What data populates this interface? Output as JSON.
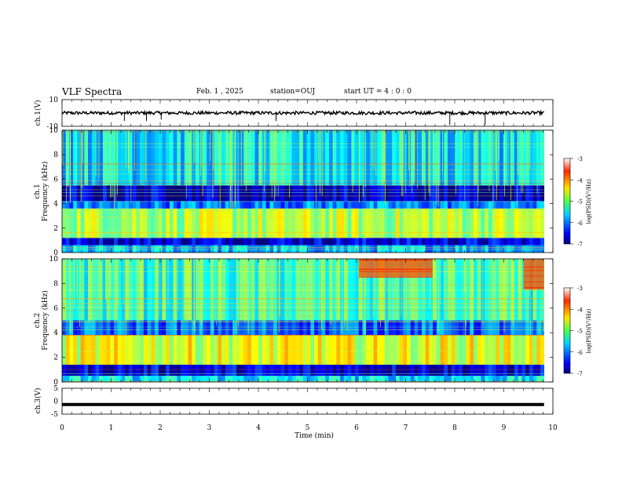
{
  "header": {
    "title": "VLF Spectra",
    "date": "Feb. 1 , 2025",
    "station": "station=OUJ",
    "start_ut": "start UT =  4 : 0  : 0"
  },
  "chart_data": [
    {
      "type": "line",
      "name": "ch1-waveform",
      "ylabel": "ch.1(V)",
      "ylim": [
        -10,
        10
      ],
      "yticks": [
        "10",
        "-10"
      ],
      "xlim": [
        0,
        10
      ],
      "baseline": 0,
      "spikes": [
        {
          "x": 1.27,
          "y": -6
        },
        {
          "x": 1.72,
          "y": -6
        },
        {
          "x": 2.02,
          "y": -5
        },
        {
          "x": 4.36,
          "y": -6
        },
        {
          "x": 7.9,
          "y": -9
        },
        {
          "x": 8.62,
          "y": -9
        }
      ]
    },
    {
      "type": "heatmap",
      "name": "ch1-spectrogram",
      "ylabel": "ch.1 Frequency (kHz)",
      "xlabel": "Time (min)",
      "xlim": [
        0,
        10
      ],
      "ylim": [
        0,
        10
      ],
      "yticks": [
        "0",
        "2",
        "4",
        "6",
        "8",
        "10"
      ],
      "colorbar": {
        "label": "log(PSD)(V²/Hz)",
        "range": [
          -7,
          -3
        ],
        "ticks": [
          "-3",
          "-4",
          "-5",
          "-6",
          "-7"
        ]
      },
      "data_extent_min": 9.82,
      "bands": [
        {
          "f": [
            0,
            0.6
          ],
          "level": -5.8
        },
        {
          "f": [
            0.6,
            1.2
          ],
          "level": -6.6
        },
        {
          "f": [
            1.2,
            3.6
          ],
          "level": -4.8
        },
        {
          "f": [
            3.6,
            4.2
          ],
          "level": -6.0
        },
        {
          "f": [
            4.2,
            5.5
          ],
          "level": -6.7
        },
        {
          "f": [
            5.5,
            10
          ],
          "level": -5.6
        }
      ]
    },
    {
      "type": "heatmap",
      "name": "ch2-spectrogram",
      "ylabel": "ch.2 Frequency (kHz)",
      "xlim": [
        0,
        10
      ],
      "ylim": [
        0,
        10
      ],
      "yticks": [
        "0",
        "2",
        "4",
        "6",
        "8",
        "10"
      ],
      "colorbar": {
        "label": "log(PSD)(V²/Hz)",
        "range": [
          -7,
          -3
        ],
        "ticks": [
          "-3",
          "-4",
          "-5",
          "-6",
          "-7"
        ]
      },
      "data_extent_min": 9.82,
      "bands": [
        {
          "f": [
            0,
            0.5
          ],
          "level": -5.6
        },
        {
          "f": [
            0.5,
            1.4
          ],
          "level": -6.6
        },
        {
          "f": [
            1.4,
            3.8
          ],
          "level": -4.6
        },
        {
          "f": [
            3.8,
            5.0
          ],
          "level": -6.1
        },
        {
          "f": [
            5.0,
            10
          ],
          "level": -5.3
        }
      ],
      "active_segments": [
        {
          "t": [
            6.05,
            7.55
          ],
          "f": [
            8.5,
            10
          ],
          "level": -3.8
        },
        {
          "t": [
            9.4,
            9.82
          ],
          "f": [
            7.5,
            10
          ],
          "level": -3.8
        }
      ]
    },
    {
      "type": "line",
      "name": "ch3-waveform",
      "ylabel": "ch.3(V)",
      "ylim": [
        -5,
        5
      ],
      "yticks": [
        "5",
        "0",
        "-5"
      ],
      "xlim": [
        0,
        10
      ],
      "xticks": [
        "0",
        "1",
        "2",
        "3",
        "4",
        "5",
        "6",
        "7",
        "8",
        "9",
        "10"
      ],
      "xlabel": "Time (min)",
      "level": -1.3
    }
  ]
}
